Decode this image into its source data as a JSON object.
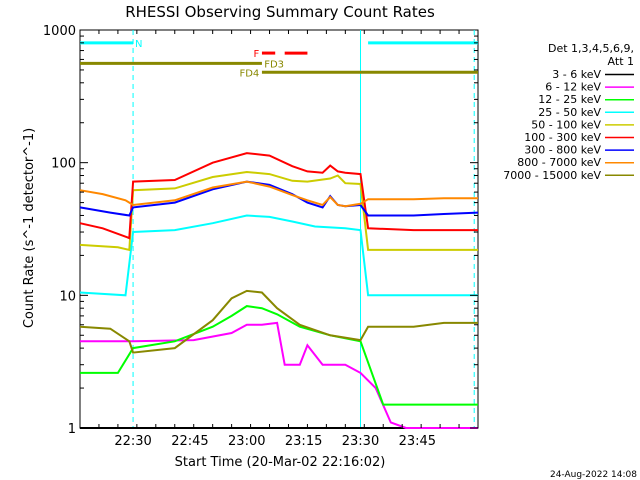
{
  "chart_data": {
    "type": "line",
    "title": "RHESSI Observing Summary Count Rates",
    "xlabel": "Start Time (20-Mar-02 22:16:02)",
    "ylabel": "Count Rate (s^-1 detector^-1)",
    "y_scale": "log",
    "ylim": [
      1,
      1000
    ],
    "xlim_min": [
      0,
      105
    ],
    "x_ticks": [
      {
        "label": "22:30",
        "min": 14
      },
      {
        "label": "22:45",
        "min": 29
      },
      {
        "label": "23:00",
        "min": 44
      },
      {
        "label": "23:15",
        "min": 59
      },
      {
        "label": "23:30",
        "min": 74
      },
      {
        "label": "23:45",
        "min": 89
      }
    ],
    "y_ticks": [
      {
        "label": "1",
        "value": 1
      },
      {
        "label": "10",
        "value": 10
      },
      {
        "label": "100",
        "value": 100
      },
      {
        "label": "1000",
        "value": 1000
      }
    ],
    "legend": {
      "header": [
        "Det 1,3,4,5,6,9,",
        "Att 1"
      ],
      "placement": "right"
    },
    "series": [
      {
        "name": "3 - 6 keV",
        "color": "#000000",
        "points": [
          [
            0,
            1
          ],
          [
            105,
            1
          ]
        ]
      },
      {
        "name": "6 - 12 keV",
        "color": "#ff00ff",
        "points": [
          [
            0,
            4.5
          ],
          [
            10,
            4.5
          ],
          [
            14,
            4.5
          ],
          [
            30,
            4.6
          ],
          [
            40,
            5.2
          ],
          [
            44,
            6
          ],
          [
            48,
            6
          ],
          [
            52,
            6.2
          ],
          [
            54,
            3
          ],
          [
            58,
            3
          ],
          [
            60,
            4.2
          ],
          [
            64,
            3
          ],
          [
            70,
            3
          ],
          [
            74,
            2.6
          ],
          [
            78,
            2
          ],
          [
            82,
            1.1
          ],
          [
            86,
            1
          ],
          [
            105,
            1
          ]
        ]
      },
      {
        "name": "12 - 25 keV",
        "color": "#00ff00",
        "points": [
          [
            0,
            2.6
          ],
          [
            10,
            2.6
          ],
          [
            14,
            4
          ],
          [
            25,
            4.5
          ],
          [
            35,
            5.8
          ],
          [
            40,
            7
          ],
          [
            44,
            8.3
          ],
          [
            48,
            8
          ],
          [
            52,
            7.2
          ],
          [
            58,
            5.8
          ],
          [
            66,
            5
          ],
          [
            74,
            4.5
          ],
          [
            80,
            1.5
          ],
          [
            88,
            1.5
          ],
          [
            96,
            1.5
          ],
          [
            105,
            1.5
          ]
        ]
      },
      {
        "name": "25 - 50 keV",
        "color": "#00ffff",
        "points": [
          [
            0,
            10.5
          ],
          [
            12,
            10
          ],
          [
            14,
            30
          ],
          [
            25,
            31
          ],
          [
            35,
            35
          ],
          [
            44,
            40
          ],
          [
            50,
            39
          ],
          [
            56,
            36
          ],
          [
            62,
            33
          ],
          [
            70,
            32
          ],
          [
            74,
            31
          ],
          [
            76,
            10
          ],
          [
            88,
            10
          ],
          [
            96,
            10
          ],
          [
            105,
            10
          ]
        ]
      },
      {
        "name": "50 - 100 keV",
        "color": "#cccc00",
        "points": [
          [
            0,
            24
          ],
          [
            10,
            23
          ],
          [
            13,
            22
          ],
          [
            14,
            62
          ],
          [
            25,
            64
          ],
          [
            35,
            78
          ],
          [
            44,
            85
          ],
          [
            50,
            82
          ],
          [
            56,
            73
          ],
          [
            60,
            72
          ],
          [
            66,
            76
          ],
          [
            68,
            80
          ],
          [
            70,
            70
          ],
          [
            74,
            69
          ],
          [
            76,
            22
          ],
          [
            88,
            22
          ],
          [
            96,
            22
          ],
          [
            105,
            22
          ]
        ]
      },
      {
        "name": "100 - 300 keV",
        "color": "#ff0000",
        "points": [
          [
            0,
            35
          ],
          [
            6,
            32
          ],
          [
            13,
            27
          ],
          [
            14,
            72
          ],
          [
            25,
            74
          ],
          [
            35,
            100
          ],
          [
            44,
            118
          ],
          [
            50,
            113
          ],
          [
            56,
            94
          ],
          [
            60,
            86
          ],
          [
            64,
            84
          ],
          [
            66,
            95
          ],
          [
            68,
            86
          ],
          [
            70,
            84
          ],
          [
            74,
            82
          ],
          [
            76,
            32
          ],
          [
            88,
            31
          ],
          [
            96,
            31
          ],
          [
            105,
            31
          ]
        ]
      },
      {
        "name": "300 - 800 keV",
        "color": "#0000ff",
        "points": [
          [
            0,
            46
          ],
          [
            8,
            42
          ],
          [
            13,
            40
          ],
          [
            14,
            46
          ],
          [
            25,
            50
          ],
          [
            35,
            63
          ],
          [
            44,
            72
          ],
          [
            50,
            68
          ],
          [
            56,
            58
          ],
          [
            60,
            50
          ],
          [
            64,
            46
          ],
          [
            66,
            56
          ],
          [
            68,
            48
          ],
          [
            70,
            47
          ],
          [
            74,
            48
          ],
          [
            76,
            40
          ],
          [
            88,
            40
          ],
          [
            96,
            41
          ],
          [
            105,
            42
          ]
        ]
      },
      {
        "name": "800 - 7000 keV",
        "color": "#ff8800",
        "points": [
          [
            0,
            62
          ],
          [
            6,
            58
          ],
          [
            12,
            52
          ],
          [
            14,
            48
          ],
          [
            25,
            52
          ],
          [
            35,
            65
          ],
          [
            44,
            72
          ],
          [
            50,
            66
          ],
          [
            56,
            57
          ],
          [
            60,
            52
          ],
          [
            64,
            48
          ],
          [
            66,
            55
          ],
          [
            68,
            48
          ],
          [
            70,
            47
          ],
          [
            74,
            49
          ],
          [
            76,
            53
          ],
          [
            88,
            53
          ],
          [
            96,
            54
          ],
          [
            105,
            54
          ]
        ]
      },
      {
        "name": "7000 - 15000 keV",
        "color": "#888800",
        "points": [
          [
            0,
            5.8
          ],
          [
            8,
            5.6
          ],
          [
            13,
            4.5
          ],
          [
            14,
            3.7
          ],
          [
            25,
            4
          ],
          [
            35,
            6.5
          ],
          [
            40,
            9.5
          ],
          [
            44,
            10.8
          ],
          [
            48,
            10.5
          ],
          [
            52,
            8
          ],
          [
            58,
            6
          ],
          [
            66,
            5
          ],
          [
            74,
            4.6
          ],
          [
            76,
            5.8
          ],
          [
            88,
            5.8
          ],
          [
            96,
            6.2
          ],
          [
            105,
            6.2
          ]
        ]
      }
    ],
    "annotations": {
      "flag_rows": [
        {
          "label": "N",
          "color": "#00ffff",
          "value": 800,
          "segments": [
            [
              0,
              14
            ],
            [
              76,
              105
            ]
          ]
        },
        {
          "label": "F",
          "color": "#ff0000",
          "value": 670,
          "segments": [
            [
              48,
              51.5
            ],
            [
              54,
              60
            ]
          ]
        },
        {
          "label": "FD3",
          "color": "#888800",
          "value": 560,
          "segments": [
            [
              0,
              48
            ]
          ]
        },
        {
          "label": "FD4",
          "color": "#888800",
          "value": 480,
          "segments": [
            [
              48,
              105
            ]
          ]
        }
      ],
      "vertical_lines": [
        {
          "min": 14,
          "style": "dashed",
          "color": "#00ffff"
        },
        {
          "min": 74,
          "style": "solid",
          "color": "#00ffff"
        },
        {
          "min": 104,
          "style": "dashed",
          "color": "#00ffff"
        }
      ]
    },
    "grid": false,
    "footer_date": "24-Aug-2022 14:08"
  }
}
